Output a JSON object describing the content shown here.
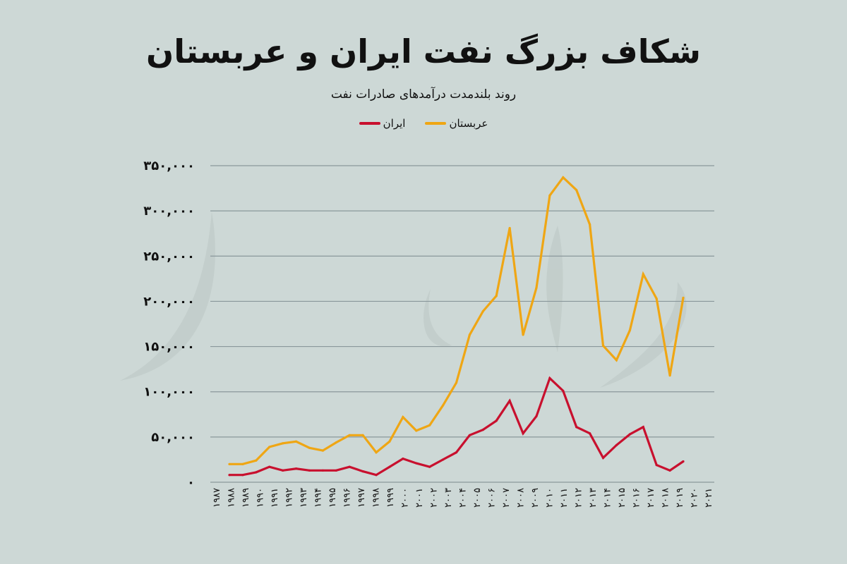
{
  "chart_data": {
    "type": "line",
    "title": "شکاف بزرگ نفت ایران و عربستان",
    "subtitle": "روند بلندمدت درآمدهای صادرات نفت",
    "xlabel": "",
    "ylabel": "",
    "ylim": [
      0,
      350000
    ],
    "y_ticks": [
      0,
      50000,
      100000,
      150000,
      200000,
      250000,
      300000,
      350000
    ],
    "y_tick_labels": [
      "۰",
      "۵۰,۰۰۰",
      "۱۰۰,۰۰۰",
      "۱۵۰,۰۰۰",
      "۲۰۰,۰۰۰",
      "۲۵۰,۰۰۰",
      "۳۰۰,۰۰۰",
      "۳۵۰,۰۰۰"
    ],
    "grid": true,
    "legend_placement": "top-center",
    "x": [
      1987,
      1988,
      1989,
      1990,
      1991,
      1992,
      1993,
      1994,
      1995,
      1996,
      1997,
      1998,
      1999,
      2000,
      2001,
      2002,
      2003,
      2004,
      2005,
      2006,
      2007,
      2008,
      2009,
      2010,
      2011,
      2012,
      2013,
      2014,
      2015,
      2016,
      2017,
      2018,
      2019,
      2020,
      2021
    ],
    "x_tick_labels": [
      "۱۹۸۷",
      "۱۹۸۸",
      "۱۹۸۹",
      "۱۹۹۰",
      "۱۹۹۱",
      "۱۹۹۲",
      "۱۹۹۳",
      "۱۹۹۴",
      "۱۹۹۵",
      "۱۹۹۶",
      "۱۹۹۷",
      "۱۹۹۸",
      "۱۹۹۹",
      "۲۰۰۰",
      "۲۰۰۱",
      "۲۰۰۲",
      "۲۰۰۳",
      "۲۰۰۴",
      "۲۰۰۵",
      "۲۰۰۶",
      "۲۰۰۷",
      "۲۰۰۸",
      "۲۰۰۹",
      "۲۰۱۰",
      "۲۰۱۱",
      "۲۰۱۲",
      "۲۰۱۳",
      "۲۰۱۴",
      "۲۰۱۵",
      "۲۰۱۶",
      "۲۰۱۷",
      "۲۰۱۸",
      "۲۰۱۹",
      "۲۰۲۰",
      "۲۰۲۱"
    ],
    "series": [
      {
        "name": "عربستان",
        "color": "#efa614",
        "values": [
          20000,
          20000,
          24000,
          39000,
          43000,
          45000,
          38000,
          35000,
          44000,
          52000,
          52000,
          33000,
          45000,
          72000,
          57000,
          63000,
          85000,
          110000,
          163000,
          189000,
          206000,
          281000,
          163000,
          215000,
          317000,
          337000,
          323000,
          285000,
          151000,
          135000,
          168000,
          230000,
          203000,
          118000,
          204000
        ]
      },
      {
        "name": "ایران",
        "color": "#c8102e",
        "values": [
          8000,
          8000,
          11000,
          17000,
          13000,
          15000,
          13000,
          13000,
          13000,
          17000,
          12000,
          8000,
          17000,
          26000,
          21000,
          17000,
          25000,
          33000,
          52000,
          58000,
          68000,
          90000,
          54000,
          73000,
          115000,
          101000,
          61000,
          54000,
          27000,
          41000,
          53000,
          61000,
          19000,
          13000,
          23000
        ]
      }
    ]
  }
}
